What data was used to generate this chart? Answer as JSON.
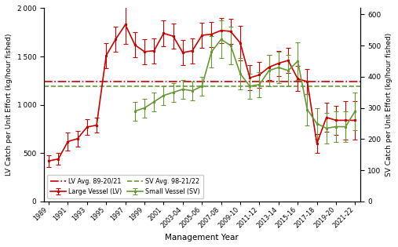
{
  "lv_x": [
    0,
    1,
    2,
    3,
    4,
    5,
    6,
    7,
    8,
    9,
    10,
    11,
    12,
    13,
    14,
    15,
    16,
    17,
    18,
    19,
    20,
    21,
    22,
    23,
    24,
    25,
    26,
    27,
    28,
    29,
    30,
    31,
    32
  ],
  "lv_values": [
    420,
    440,
    620,
    650,
    770,
    790,
    1510,
    1680,
    1830,
    1620,
    1550,
    1560,
    1740,
    1710,
    1540,
    1560,
    1720,
    1730,
    1770,
    1760,
    1640,
    1280,
    1310,
    1390,
    1430,
    1460,
    1270,
    1240,
    600,
    870,
    840,
    840,
    840
  ],
  "lv_err_lo": [
    60,
    60,
    90,
    80,
    80,
    80,
    130,
    130,
    200,
    130,
    130,
    130,
    130,
    130,
    130,
    130,
    130,
    130,
    130,
    130,
    180,
    130,
    130,
    130,
    130,
    130,
    130,
    130,
    100,
    150,
    150,
    200,
    200
  ],
  "lv_err_hi": [
    60,
    60,
    90,
    80,
    80,
    80,
    130,
    130,
    200,
    130,
    130,
    130,
    130,
    130,
    130,
    130,
    130,
    130,
    130,
    130,
    180,
    130,
    130,
    130,
    130,
    130,
    130,
    130,
    100,
    150,
    150,
    200,
    200
  ],
  "sv_x": [
    9,
    10,
    11,
    12,
    13,
    14,
    15,
    16,
    17,
    18,
    19,
    20,
    21,
    22,
    23,
    24,
    25,
    26,
    27,
    28,
    29,
    30,
    31,
    32
  ],
  "sv_values": [
    290,
    300,
    320,
    340,
    350,
    360,
    355,
    370,
    480,
    520,
    500,
    410,
    370,
    375,
    420,
    430,
    420,
    450,
    295,
    250,
    235,
    240,
    240,
    290
  ],
  "sv_err_lo": [
    30,
    30,
    30,
    30,
    30,
    30,
    30,
    30,
    50,
    60,
    60,
    50,
    40,
    40,
    50,
    50,
    50,
    60,
    50,
    50,
    50,
    50,
    50,
    60
  ],
  "sv_err_hi": [
    30,
    30,
    30,
    30,
    30,
    30,
    30,
    30,
    50,
    60,
    60,
    50,
    40,
    40,
    50,
    50,
    50,
    60,
    50,
    50,
    50,
    50,
    50,
    60
  ],
  "lv_avg": 1240,
  "sv_avg": 370,
  "lv_color": "#cc0000",
  "sv_color": "#669933",
  "lv_ylim": [
    0,
    2000
  ],
  "sv_ylim": [
    0,
    620
  ],
  "lv_yticks": [
    0,
    500,
    1000,
    1500,
    2000
  ],
  "sv_yticks": [
    0,
    100,
    200,
    300,
    400,
    500,
    600
  ],
  "lv_ylabel": "LV Catch per Unit Effort (kg/hour fished)",
  "sv_ylabel": "SV Catch per Unit Effort (kg/hour fished)",
  "xlabel": "Management Year",
  "legend_lv": "Large Vessel (LV)",
  "legend_sv": "Small Vessel (SV)",
  "legend_lv_avg": "LV Avg. 89-20/21",
  "legend_sv_avg": "SV Avg. 98-21/22",
  "xtick_positions": [
    0,
    2,
    4,
    6,
    8,
    10,
    12,
    14,
    16,
    18,
    20,
    22,
    24,
    26,
    28,
    30,
    32
  ],
  "xtick_labels": [
    "1989",
    "1991",
    "1993",
    "1995",
    "1997",
    "1999",
    "2001",
    "2003-04",
    "2005-06",
    "2007-08",
    "2009-10",
    "2011-12",
    "2013-14",
    "2015-16",
    "2017-18",
    "2019-20",
    "2021-22"
  ],
  "xlim": [
    -0.5,
    32.5
  ]
}
